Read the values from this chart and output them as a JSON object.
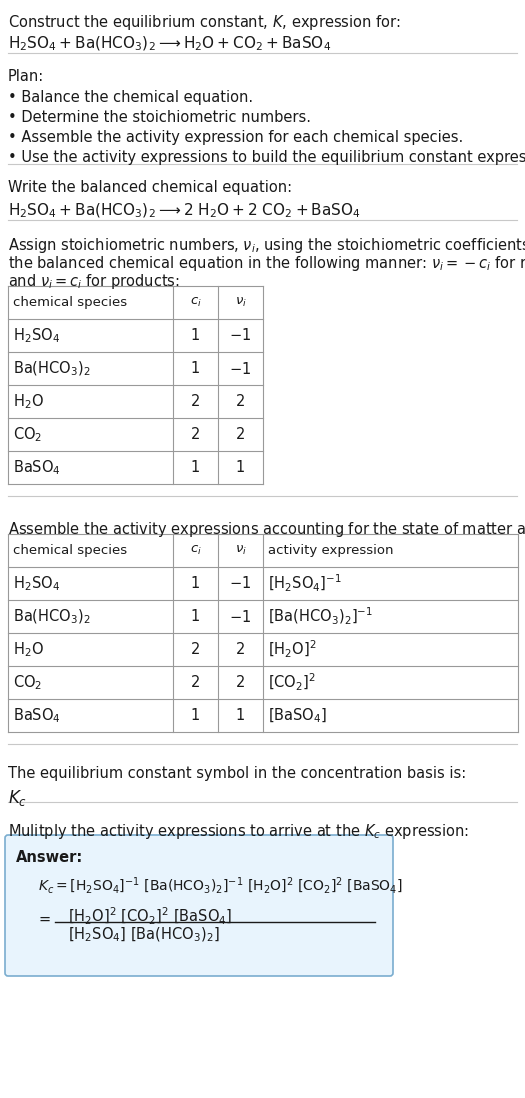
{
  "title_line1": "Construct the equilibrium constant, $K$, expression for:",
  "title_chem": "$\\mathrm{H_2SO_4 + Ba(HCO_3)_2 \\longrightarrow H_2O + CO_2 + BaSO_4}$",
  "plan_header": "Plan:",
  "plan_bullets": [
    "• Balance the chemical equation.",
    "• Determine the stoichiometric numbers.",
    "• Assemble the activity expression for each chemical species.",
    "• Use the activity expressions to build the equilibrium constant expression."
  ],
  "balanced_header": "Write the balanced chemical equation:",
  "balanced_eq": "$\\mathrm{H_2SO_4 + Ba(HCO_3)_2 \\longrightarrow 2\\ H_2O + 2\\ CO_2 + BaSO_4}$",
  "stoich_text1": "Assign stoichiometric numbers, $\\nu_i$, using the stoichiometric coefficients, $c_i$, from",
  "stoich_text2": "the balanced chemical equation in the following manner: $\\nu_i = -c_i$ for reactants",
  "stoich_text3": "and $\\nu_i = c_i$ for products:",
  "table1_col0_header": "chemical species",
  "table1_col1_header": "$c_i$",
  "table1_col2_header": "$\\nu_i$",
  "table1_rows": [
    [
      "$\\mathrm{H_2SO_4}$",
      "1",
      "$-1$"
    ],
    [
      "$\\mathrm{Ba(HCO_3)_2}$",
      "1",
      "$-1$"
    ],
    [
      "$\\mathrm{H_2O}$",
      "2",
      "2"
    ],
    [
      "$\\mathrm{CO_2}$",
      "2",
      "2"
    ],
    [
      "$\\mathrm{BaSO_4}$",
      "1",
      "1"
    ]
  ],
  "activity_text": "Assemble the activity expressions accounting for the state of matter and $\\nu_i$:",
  "table2_col0_header": "chemical species",
  "table2_col1_header": "$c_i$",
  "table2_col2_header": "$\\nu_i$",
  "table2_col3_header": "activity expression",
  "table2_rows": [
    [
      "$\\mathrm{H_2SO_4}$",
      "1",
      "$-1$",
      "$[\\mathrm{H_2SO_4}]^{-1}$"
    ],
    [
      "$\\mathrm{Ba(HCO_3)_2}$",
      "1",
      "$-1$",
      "$[\\mathrm{Ba(HCO_3)_2}]^{-1}$"
    ],
    [
      "$\\mathrm{H_2O}$",
      "2",
      "2",
      "$[\\mathrm{H_2O}]^2$"
    ],
    [
      "$\\mathrm{CO_2}$",
      "2",
      "2",
      "$[\\mathrm{CO_2}]^2$"
    ],
    [
      "$\\mathrm{BaSO_4}$",
      "1",
      "1",
      "$[\\mathrm{BaSO_4}]$"
    ]
  ],
  "kc_text": "The equilibrium constant symbol in the concentration basis is:",
  "kc_symbol": "$K_c$",
  "multiply_text": "Mulitply the activity expressions to arrive at the $K_c$ expression:",
  "answer_label": "Answer:",
  "answer_eq": "$K_c = [\\mathrm{H_2SO_4}]^{-1}\\ [\\mathrm{Ba(HCO_3)_2}]^{-1}\\ [\\mathrm{H_2O}]^2\\ [\\mathrm{CO_2}]^2\\ [\\mathrm{BaSO_4}]$",
  "answer_eq2_num": "$[\\mathrm{H_2O}]^2\\ [\\mathrm{CO_2}]^2\\ [\\mathrm{BaSO_4}]$",
  "answer_eq2_den": "$[\\mathrm{H_2SO_4}]\\ [\\mathrm{Ba(HCO_3)_2}]$",
  "bg_color": "#ffffff",
  "text_color": "#1a1a1a",
  "sep_color": "#c8c8c8",
  "table_line_color": "#999999",
  "box_bg": "#e8f4fd",
  "box_border": "#7aadcf"
}
